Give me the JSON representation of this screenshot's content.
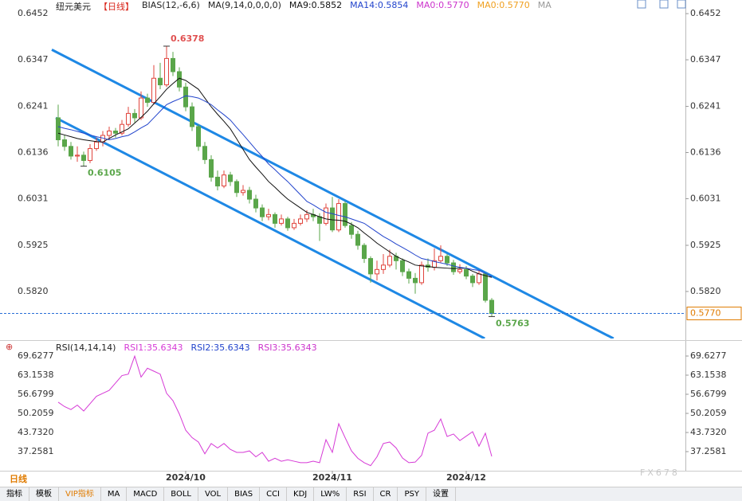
{
  "chart_data": [
    {
      "type": "candlestick",
      "header": [
        {
          "text": "纽元美元",
          "color": "#222"
        },
        {
          "text": "【日线】",
          "color": "#d9261c"
        },
        {
          "text": "BIAS(12,-6,6)",
          "color": "#222"
        },
        {
          "text": "MA(9,14,0,0,0,0)",
          "color": "#222"
        }
      ],
      "header_extra": [
        {
          "text": "MA0:0.5770",
          "color": "#cc33cc"
        },
        {
          "text": "MA0:0.5770",
          "color": "#f0a020"
        },
        {
          "text": "MA",
          "color": "#999"
        }
      ],
      "xlim": [
        -9.125,
        98.375
      ],
      "ylim": [
        0.5713,
        0.6483
      ],
      "yticks": [
        0.6452,
        0.6347,
        0.6241,
        0.6136,
        0.6031,
        0.5925,
        {
          "value": 0.582,
          "label": "0.5820"
        }
      ],
      "xticks": [
        {
          "value": 20,
          "label": "2024/10"
        },
        {
          "value": 43,
          "label": "2024/11"
        },
        {
          "value": 64,
          "label": "2024/12"
        }
      ],
      "up_color": "#e0443c",
      "down_color": "#5aa64a",
      "open": [
        0.6215,
        0.6165,
        0.615,
        0.6128,
        0.613,
        0.6118,
        0.6145,
        0.616,
        0.6175,
        0.6185,
        0.618,
        0.62,
        0.6225,
        0.6215,
        0.626,
        0.625,
        0.6305,
        0.629,
        0.635,
        0.632,
        0.6285,
        0.624,
        0.6195,
        0.615,
        0.612,
        0.608,
        0.606,
        0.6085,
        0.607,
        0.6045,
        0.605,
        0.603,
        0.601,
        0.599,
        0.5995,
        0.5975,
        0.5985,
        0.5965,
        0.5975,
        0.5985,
        0.5995,
        0.599,
        0.5975,
        0.601,
        0.596,
        0.602,
        0.597,
        0.595,
        0.5925,
        0.5895,
        0.586,
        0.587,
        0.588,
        0.59,
        0.589,
        0.5865,
        0.585,
        0.584,
        0.588,
        0.5875,
        0.589,
        0.59,
        0.5885,
        0.5865,
        0.587,
        0.5855,
        0.584,
        0.586,
        0.58
      ],
      "high": [
        0.6245,
        0.6175,
        0.616,
        0.615,
        0.6138,
        0.6155,
        0.617,
        0.6185,
        0.6195,
        0.6192,
        0.621,
        0.624,
        0.6235,
        0.6275,
        0.627,
        0.6335,
        0.634,
        0.6378,
        0.6365,
        0.633,
        0.6295,
        0.625,
        0.62,
        0.616,
        0.613,
        0.6095,
        0.6095,
        0.6092,
        0.6075,
        0.6062,
        0.6058,
        0.604,
        0.6018,
        0.6008,
        0.6,
        0.5995,
        0.599,
        0.5985,
        0.5995,
        0.6005,
        0.6008,
        0.5998,
        0.602,
        0.6035,
        0.603,
        0.6025,
        0.5978,
        0.5958,
        0.593,
        0.59,
        0.589,
        0.5905,
        0.5915,
        0.5908,
        0.5895,
        0.5872,
        0.5862,
        0.5888,
        0.5895,
        0.5918,
        0.5925,
        0.5905,
        0.5892,
        0.5882,
        0.5878,
        0.586,
        0.5868,
        0.5862,
        0.5805
      ],
      "low": [
        0.615,
        0.614,
        0.612,
        0.6115,
        0.6105,
        0.6112,
        0.614,
        0.615,
        0.6165,
        0.617,
        0.6175,
        0.6195,
        0.6205,
        0.621,
        0.624,
        0.6245,
        0.628,
        0.6285,
        0.631,
        0.6275,
        0.623,
        0.6185,
        0.614,
        0.611,
        0.607,
        0.605,
        0.6055,
        0.606,
        0.6035,
        0.6038,
        0.602,
        0.6,
        0.598,
        0.5982,
        0.5965,
        0.597,
        0.5958,
        0.596,
        0.597,
        0.5978,
        0.598,
        0.5935,
        0.597,
        0.5955,
        0.5955,
        0.5965,
        0.594,
        0.5915,
        0.5885,
        0.584,
        0.5845,
        0.586,
        0.5875,
        0.587,
        0.5855,
        0.5838,
        0.5815,
        0.5835,
        0.5865,
        0.5868,
        0.5885,
        0.5878,
        0.5858,
        0.586,
        0.5848,
        0.583,
        0.5835,
        0.5795,
        0.5763
      ],
      "close": [
        0.6165,
        0.615,
        0.6128,
        0.613,
        0.6118,
        0.6145,
        0.616,
        0.6175,
        0.6185,
        0.618,
        0.62,
        0.6225,
        0.6215,
        0.626,
        0.625,
        0.6305,
        0.629,
        0.635,
        0.632,
        0.6285,
        0.624,
        0.6195,
        0.615,
        0.612,
        0.608,
        0.606,
        0.6085,
        0.607,
        0.6045,
        0.605,
        0.603,
        0.601,
        0.599,
        0.5995,
        0.5975,
        0.5985,
        0.5965,
        0.5975,
        0.5985,
        0.5995,
        0.599,
        0.5975,
        0.601,
        0.596,
        0.602,
        0.597,
        0.595,
        0.5925,
        0.5895,
        0.586,
        0.587,
        0.588,
        0.59,
        0.589,
        0.5865,
        0.585,
        0.584,
        0.588,
        0.5875,
        0.589,
        0.59,
        0.5885,
        0.5865,
        0.587,
        0.5855,
        0.584,
        0.586,
        0.58,
        0.577
      ],
      "series": [
        {
          "name": "MA9:0.5852",
          "color": "#111111",
          "values": [
            0.618,
            0.6176,
            0.6172,
            0.6168,
            0.6165,
            0.6163,
            0.6161,
            0.616,
            0.6168,
            0.6176,
            0.6183,
            0.619,
            0.6203,
            0.6216,
            0.623,
            0.6247,
            0.6263,
            0.628,
            0.6293,
            0.6305,
            0.63,
            0.629,
            0.628,
            0.626,
            0.624,
            0.6223,
            0.6207,
            0.619,
            0.6167,
            0.6143,
            0.612,
            0.6103,
            0.6087,
            0.607,
            0.6057,
            0.6043,
            0.603,
            0.602,
            0.601,
            0.6,
            0.5995,
            0.599,
            0.5985,
            0.5983,
            0.5982,
            0.598,
            0.5973,
            0.5965,
            0.5953,
            0.5942,
            0.593,
            0.592,
            0.591,
            0.59,
            0.5893,
            0.5887,
            0.588,
            0.5878,
            0.5877,
            0.5875,
            0.5874,
            0.5873,
            0.5872,
            0.5873,
            0.5873,
            0.5866,
            0.586,
            0.5856,
            0.5852
          ]
        },
        {
          "name": "MA14:0.5854",
          "color": "#2244cc",
          "values": [
            0.6195,
            0.6191,
            0.6188,
            0.6184,
            0.618,
            0.6176,
            0.6172,
            0.6169,
            0.6165,
            0.6168,
            0.6172,
            0.6175,
            0.6183,
            0.6192,
            0.62,
            0.6215,
            0.623,
            0.6245,
            0.6252,
            0.6258,
            0.6265,
            0.6263,
            0.626,
            0.6253,
            0.6245,
            0.6233,
            0.6222,
            0.621,
            0.6193,
            0.6177,
            0.616,
            0.6143,
            0.6127,
            0.611,
            0.6097,
            0.6083,
            0.607,
            0.6055,
            0.604,
            0.6025,
            0.6017,
            0.6008,
            0.6,
            0.5997,
            0.5993,
            0.599,
            0.5985,
            0.598,
            0.5975,
            0.5965,
            0.5955,
            0.5945,
            0.5937,
            0.5928,
            0.592,
            0.5912,
            0.5903,
            0.5895,
            0.5892,
            0.5888,
            0.5885,
            0.5882,
            0.5878,
            0.5875,
            0.5873,
            0.587,
            0.5868,
            0.5861,
            0.5854
          ]
        }
      ],
      "channels": [
        {
          "color": "#1e88e5",
          "x": [
            -1,
            87.1
          ],
          "y": [
            0.637,
            0.5713
          ]
        },
        {
          "color": "#1e88e5",
          "x": [
            -0.375,
            66.9
          ],
          "y": [
            0.6215,
            0.5713
          ]
        }
      ],
      "markers": [
        {
          "index": 17,
          "value": 0.6378,
          "color": "#e05050"
        },
        {
          "index": 4,
          "value": 0.6105,
          "color": "#5aa64a"
        },
        {
          "index": 68,
          "value": 0.5763,
          "color": "#5aa64a"
        }
      ],
      "last_price": {
        "value": 0.577,
        "label": "0.5770"
      }
    },
    {
      "type": "line",
      "header": [
        {
          "text": "RSI(14,14,14)",
          "color": "#222"
        }
      ],
      "header_extra": [
        {
          "text": "RSI2:35.6343",
          "color": "#2244cc"
        },
        {
          "text": "RSI3:35.6343",
          "color": "#cc33cc"
        }
      ],
      "xlim": [
        -9.125,
        98.375
      ],
      "ylim": [
        31.05,
        74.21
      ],
      "yticks": [
        69.6277,
        63.1538,
        56.6799,
        50.2059,
        {
          "value": 43.732,
          "label": "43.7320"
        },
        37.2581
      ],
      "series": [
        {
          "name": "RSI1:35.6343",
          "color": "#d63ad6",
          "values": [
            54.0,
            52.5,
            51.5,
            53.0,
            51.0,
            53.5,
            56.0,
            57.0,
            58.0,
            60.5,
            63.0,
            63.5,
            69.6,
            62.5,
            65.5,
            64.5,
            63.5,
            57.0,
            54.5,
            50.0,
            44.5,
            42.0,
            40.5,
            36.5,
            40.0,
            38.5,
            40.0,
            38.0,
            37.0,
            37.0,
            37.5,
            35.5,
            37.0,
            34.0,
            35.0,
            34.0,
            34.5,
            34.0,
            33.5,
            33.5,
            34.0,
            33.5,
            41.3,
            37.0,
            46.7,
            42.0,
            37.5,
            35.0,
            33.5,
            32.5,
            35.5,
            40.0,
            40.5,
            38.5,
            35.1,
            33.5,
            33.7,
            36.0,
            43.5,
            44.5,
            48.3,
            42.4,
            43.2,
            41.0,
            42.5,
            44.0,
            39.1,
            43.5,
            35.6343
          ]
        }
      ]
    }
  ],
  "period_label": "日线",
  "watermark": "FX678",
  "toolbar": [
    "指标",
    "模板",
    "VIP指标",
    "MA",
    "MACD",
    "BOLL",
    "VOL",
    "BIAS",
    "CCI",
    "KDJ",
    "LW%",
    "RSI",
    "CR",
    "PSY",
    "设置"
  ]
}
